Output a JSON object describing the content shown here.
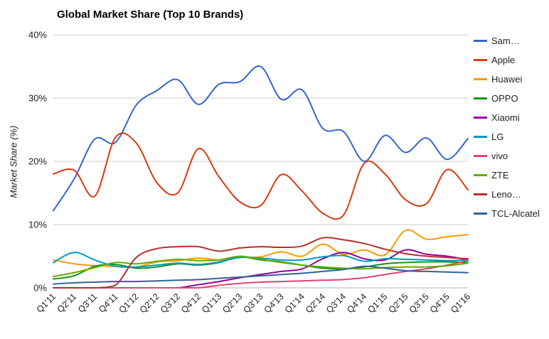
{
  "chart_data": {
    "type": "line",
    "title": "Global Market Share (Top 10 Brands)",
    "xlabel": "",
    "ylabel": "Market Share (%)",
    "ylim": [
      0,
      40
    ],
    "grid": true,
    "legend_position": "right",
    "curve": "smoothed",
    "y_ticks": [
      {
        "value": 0,
        "label": "0%"
      },
      {
        "value": 10,
        "label": "10%"
      },
      {
        "value": 20,
        "label": "20%"
      },
      {
        "value": 30,
        "label": "30%"
      },
      {
        "value": 40,
        "label": "40%"
      }
    ],
    "categories": [
      "Q1'11",
      "Q2'11",
      "Q3'11",
      "Q4'11",
      "Q1'12",
      "Q2'12",
      "Q3'12",
      "Q4'12",
      "Q1'13",
      "Q2'13",
      "Q3'13",
      "Q4'13",
      "Q1'14",
      "Q2'14",
      "Q3'14",
      "Q4'14",
      "Q1'15",
      "Q2'15",
      "Q3'15",
      "Q4'15",
      "Q1'16"
    ],
    "series": [
      {
        "name": "Samsung",
        "legend_label": "Sam…",
        "color": "#3366CC",
        "values": [
          12.2,
          17.2,
          23.5,
          23.0,
          28.9,
          31.2,
          32.9,
          29.0,
          32.2,
          32.6,
          35.0,
          29.8,
          31.3,
          25.2,
          24.7,
          20.0,
          24.1,
          21.4,
          23.7,
          20.3,
          23.6
        ]
      },
      {
        "name": "Apple",
        "legend_label": "Apple",
        "color": "#DC3912",
        "values": [
          18.0,
          18.6,
          14.5,
          23.8,
          22.9,
          16.6,
          15.0,
          22.0,
          17.5,
          13.6,
          13.0,
          17.9,
          15.3,
          11.8,
          11.5,
          19.7,
          18.0,
          13.9,
          13.3,
          18.7,
          15.5
        ]
      },
      {
        "name": "Huawei",
        "legend_label": "Huawei",
        "color": "#FF9900",
        "values": [
          4.4,
          3.8,
          3.5,
          3.4,
          3.3,
          4.1,
          4.3,
          4.7,
          4.4,
          4.8,
          4.9,
          5.7,
          5.0,
          6.9,
          5.3,
          6.0,
          5.2,
          9.1,
          7.7,
          8.1,
          8.4
        ]
      },
      {
        "name": "OPPO",
        "legend_label": "OPPO",
        "color": "#109618",
        "values": [
          1.4,
          1.9,
          3.4,
          3.7,
          3.1,
          3.3,
          3.8,
          3.6,
          4.0,
          4.9,
          4.4,
          4.1,
          3.6,
          3.1,
          3.0,
          3.3,
          3.8,
          4.0,
          4.1,
          4.1,
          4.0
        ]
      },
      {
        "name": "Xiaomi",
        "legend_label": "Xiaomi",
        "color": "#990099",
        "values": [
          0,
          0,
          0,
          0,
          0,
          0,
          0,
          0.5,
          1.0,
          1.6,
          2.1,
          2.6,
          3.0,
          4.6,
          5.6,
          4.6,
          4.4,
          6.0,
          5.3,
          5.0,
          4.4
        ]
      },
      {
        "name": "LG",
        "legend_label": "LG",
        "color": "#0099C6",
        "values": [
          4.0,
          5.6,
          4.4,
          3.4,
          3.3,
          3.6,
          3.9,
          3.7,
          4.1,
          4.8,
          4.7,
          4.4,
          4.4,
          4.9,
          5.1,
          4.2,
          4.6,
          4.5,
          4.4,
          4.3,
          4.4
        ]
      },
      {
        "name": "vivo",
        "legend_label": "vivo",
        "color": "#DD4477",
        "values": [
          0,
          0,
          0,
          0,
          0,
          0,
          0,
          0,
          0.4,
          0.7,
          0.9,
          1.0,
          1.1,
          1.2,
          1.3,
          1.6,
          2.1,
          2.6,
          3.0,
          3.6,
          4.3
        ]
      },
      {
        "name": "ZTE",
        "legend_label": "ZTE",
        "color": "#66AA00",
        "values": [
          1.8,
          2.4,
          3.2,
          4.0,
          3.8,
          4.2,
          4.5,
          4.3,
          4.4,
          5.0,
          4.5,
          4.0,
          3.6,
          3.3,
          3.1,
          3.0,
          3.2,
          3.3,
          3.3,
          3.5,
          3.9
        ]
      },
      {
        "name": "Lenovo",
        "legend_label": "Leno…",
        "color": "#B82E2E",
        "values": [
          0,
          0,
          0,
          0.4,
          4.8,
          6.2,
          6.5,
          6.5,
          5.8,
          6.3,
          6.5,
          6.4,
          6.6,
          7.9,
          7.6,
          7.0,
          6.1,
          5.4,
          5.0,
          4.8,
          4.6
        ]
      },
      {
        "name": "TCL-Alcatel",
        "legend_label": "TCL-Alcatel",
        "color": "#316395",
        "values": [
          0.6,
          0.8,
          0.9,
          1.0,
          1.0,
          1.1,
          1.2,
          1.3,
          1.5,
          1.7,
          1.9,
          2.1,
          2.3,
          2.6,
          2.9,
          3.4,
          3.1,
          2.7,
          2.6,
          2.5,
          2.4
        ]
      }
    ],
    "colors": {
      "gridline": "#cccccc",
      "baseline": "#b0b0b0",
      "tick_text": "#222222"
    }
  }
}
